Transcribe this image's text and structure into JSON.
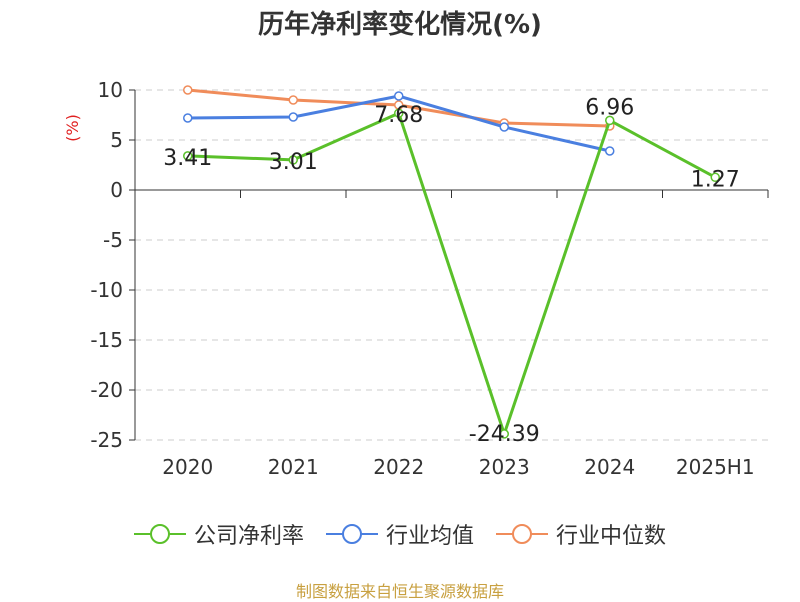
{
  "chart_data": {
    "type": "line",
    "title": "历年净利率变化情况(%)",
    "ylabel": "(%)",
    "categories": [
      "2020",
      "2021",
      "2022",
      "2023",
      "2024",
      "2025H1"
    ],
    "ylim": [
      -25,
      10
    ],
    "yticks": [
      10,
      5,
      0,
      -5,
      -10,
      -15,
      -20,
      -25
    ],
    "grid": true,
    "legend_position": "bottom",
    "series": [
      {
        "name": "公司净利率",
        "color": "#5ac02a",
        "values": [
          3.41,
          3.01,
          7.68,
          -24.39,
          6.96,
          1.27
        ],
        "labels": [
          "3.41",
          "3.01",
          "7.68",
          "-24.39",
          "6.96",
          "1.27"
        ]
      },
      {
        "name": "行业均值",
        "color": "#4a7fe0",
        "values": [
          7.2,
          7.3,
          9.4,
          6.3,
          3.9,
          null
        ]
      },
      {
        "name": "行业中位数",
        "color": "#f08c5a",
        "values": [
          10.0,
          9.0,
          8.5,
          6.7,
          6.4,
          null
        ]
      }
    ]
  },
  "source": "制图数据来自恒生聚源数据库"
}
